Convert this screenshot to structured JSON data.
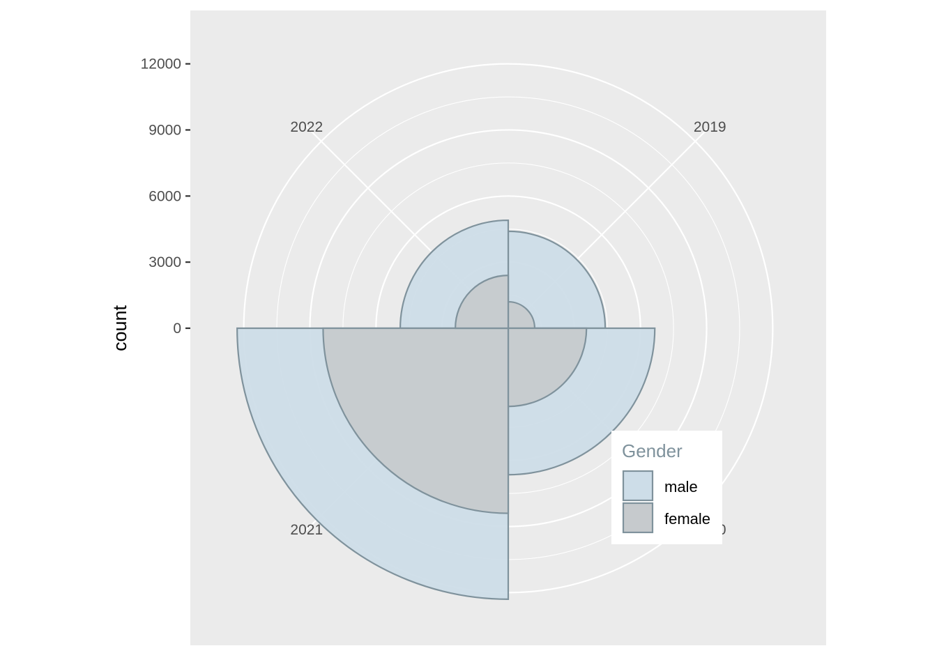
{
  "chart_data": {
    "type": "polar-bar",
    "title": "",
    "xlabel": "",
    "ylabel": "count",
    "rlim": [
      0,
      13000
    ],
    "r_ticks": [
      0,
      3000,
      6000,
      9000,
      12000
    ],
    "r_tick_labels": [
      "0",
      "3000",
      "6000",
      "9000",
      "12000"
    ],
    "categories": [
      "2019",
      "2020",
      "2021",
      "2022"
    ],
    "category_labels": [
      "2019",
      "2020",
      "2021",
      "2022"
    ],
    "series": [
      {
        "name": "male",
        "values": [
          4400,
          6650,
          12300,
          4900
        ],
        "color": "#cddde8"
      },
      {
        "name": "female",
        "values": [
          1200,
          3550,
          8400,
          2400
        ],
        "color": "#c6cacd"
      }
    ],
    "stroke_color": "#7f929c",
    "panel_background": "#ebebeb",
    "grid": true,
    "legend": {
      "title": "Gender",
      "title_color": "#7f929c",
      "placement": "inside-bottom-right",
      "entries": [
        "male",
        "female"
      ]
    }
  }
}
